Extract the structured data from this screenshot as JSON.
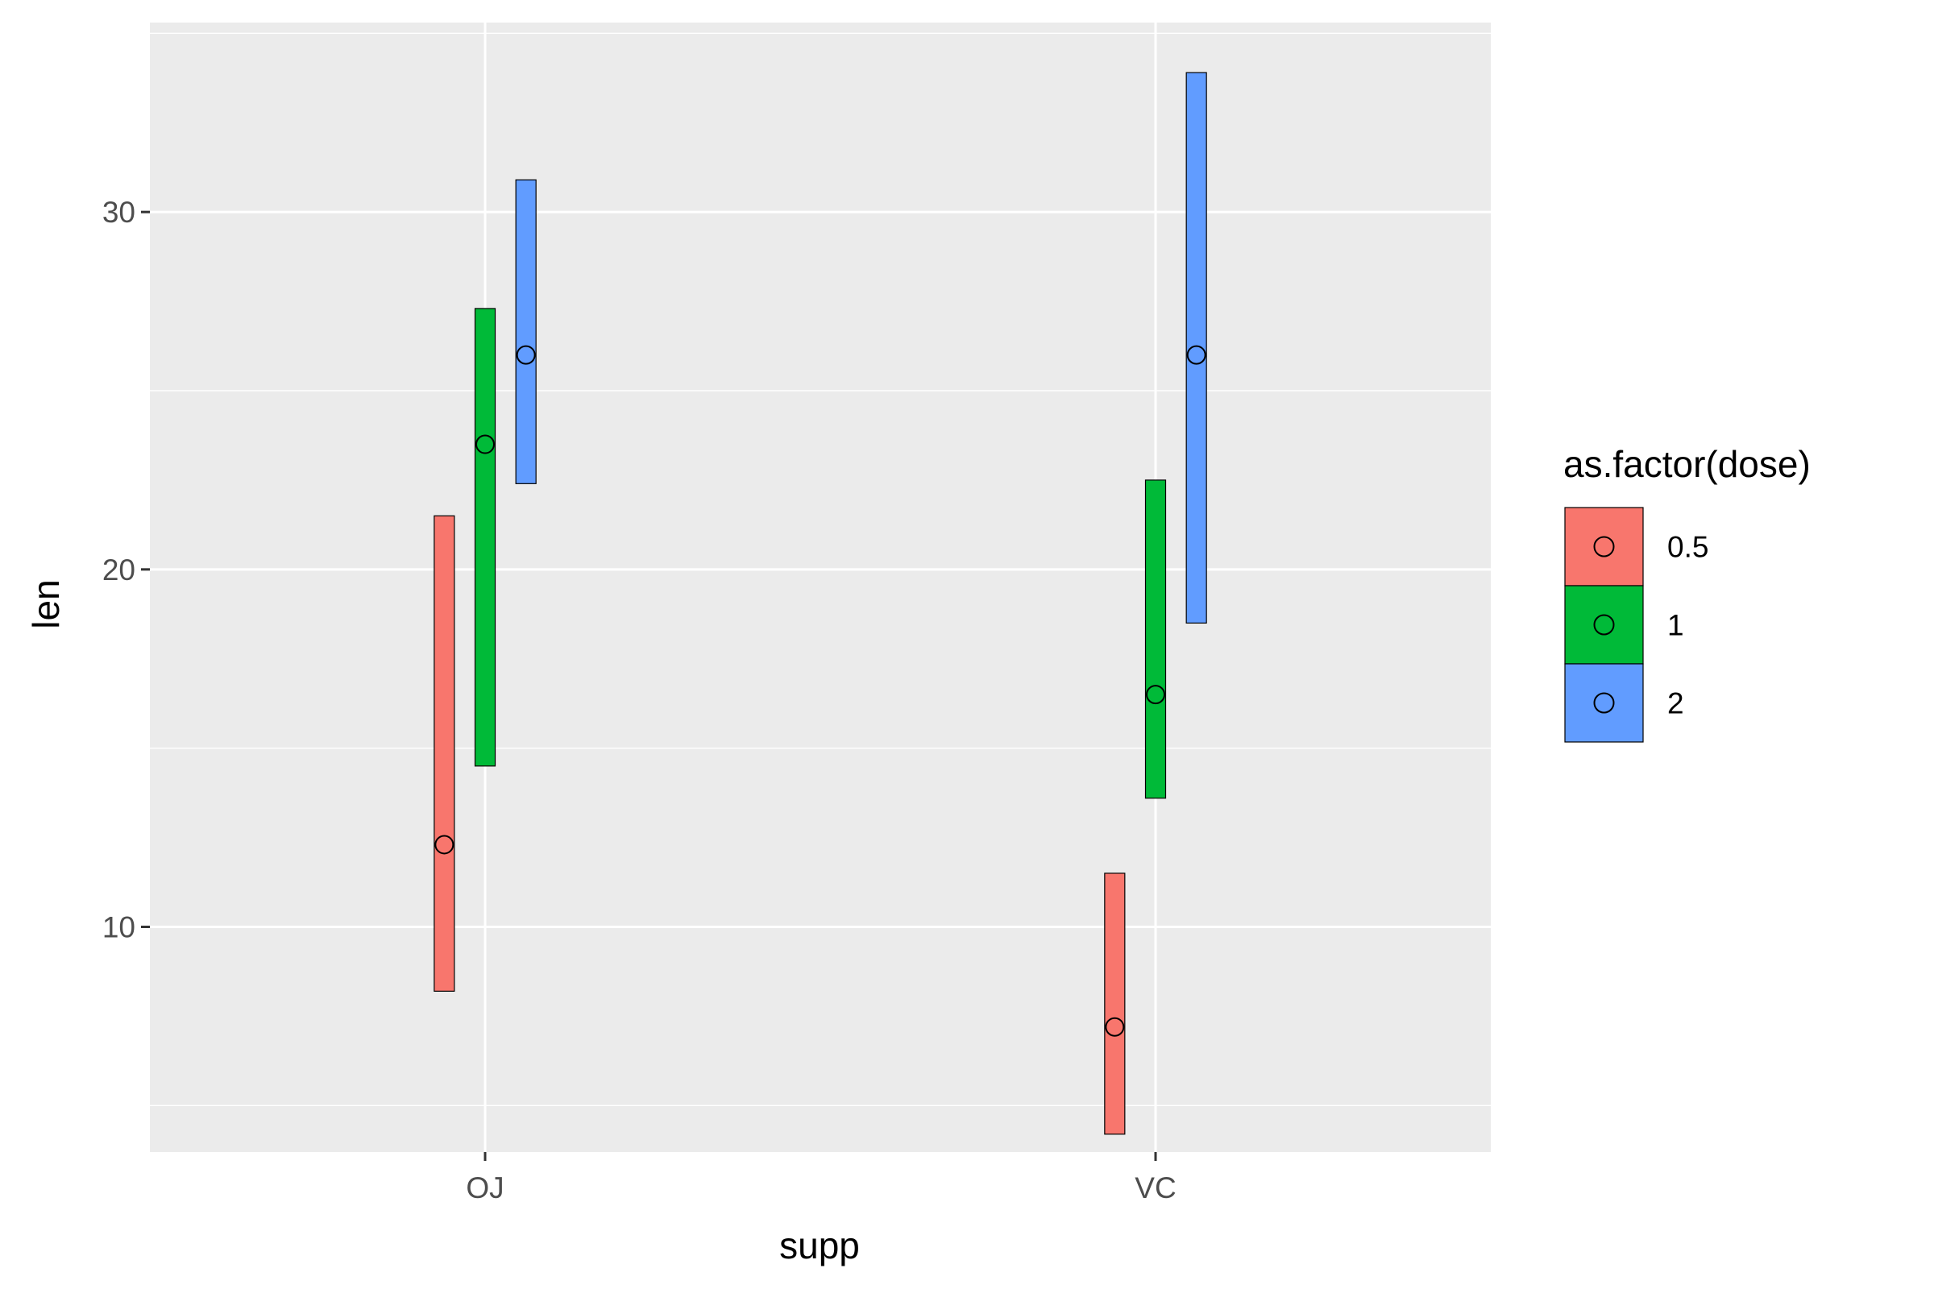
{
  "chart_data": {
    "type": "crossbar",
    "title": "",
    "xlabel": "supp",
    "ylabel": "len",
    "categories": [
      "OJ",
      "VC"
    ],
    "ylim": [
      3.7,
      35.3
    ],
    "yticks": [
      10,
      20,
      30
    ],
    "ytick_labels": [
      "10",
      "20",
      "30"
    ],
    "grid": true,
    "legend": {
      "title": "as.factor(dose)",
      "position": "right",
      "items": [
        {
          "label": "0.5",
          "color": "#F8766D"
        },
        {
          "label": "1",
          "color": "#00BA38"
        },
        {
          "label": "2",
          "color": "#619CFF"
        }
      ]
    },
    "series": [
      {
        "name": "0.5",
        "color": "#F8766D",
        "points": [
          {
            "x": "OJ",
            "mid": 12.3,
            "lower": 8.2,
            "upper": 21.5
          },
          {
            "x": "VC",
            "mid": 7.2,
            "lower": 4.2,
            "upper": 11.5
          }
        ]
      },
      {
        "name": "1",
        "color": "#00BA38",
        "points": [
          {
            "x": "OJ",
            "mid": 23.5,
            "lower": 14.5,
            "upper": 27.3
          },
          {
            "x": "VC",
            "mid": 16.5,
            "lower": 13.6,
            "upper": 22.5
          }
        ]
      },
      {
        "name": "2",
        "color": "#619CFF",
        "points": [
          {
            "x": "OJ",
            "mid": 26.0,
            "lower": 22.4,
            "upper": 30.9
          },
          {
            "x": "VC",
            "mid": 26.0,
            "lower": 18.5,
            "upper": 33.9
          }
        ]
      }
    ]
  }
}
